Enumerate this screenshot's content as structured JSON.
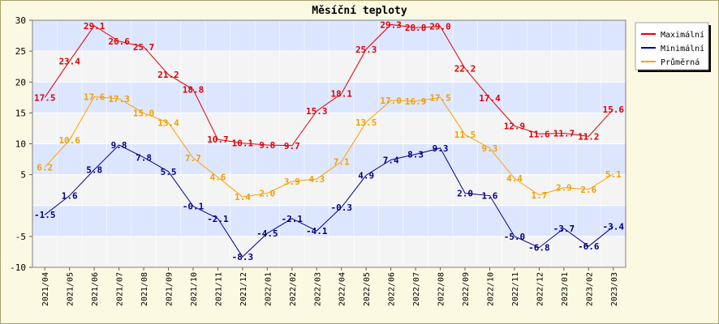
{
  "chart_data": {
    "type": "line",
    "title": "Měsíční teploty",
    "xlabel": "",
    "ylabel": "",
    "ylim": [
      -10,
      30
    ],
    "yticks": [
      -10,
      -5,
      5,
      10,
      15,
      20,
      25,
      30
    ],
    "categories": [
      "2021/04",
      "2021/05",
      "2021/06",
      "2021/07",
      "2021/08",
      "2021/09",
      "2021/10",
      "2021/11",
      "2021/12",
      "2022/01",
      "2022/02",
      "2022/03",
      "2022/04",
      "2022/05",
      "2022/06",
      "2022/07",
      "2022/08",
      "2022/09",
      "2022/10",
      "2022/11",
      "2022/12",
      "2023/01",
      "2023/02",
      "2023/03"
    ],
    "grid": true,
    "legend_position": "top-right",
    "series": [
      {
        "name": "Maximální",
        "color": "#e00000",
        "label_color": "#e00000",
        "values": [
          17.5,
          23.4,
          29.1,
          26.6,
          25.7,
          21.2,
          18.8,
          10.7,
          10.1,
          9.8,
          9.7,
          15.3,
          18.1,
          25.3,
          29.3,
          28.8,
          29.0,
          22.2,
          17.4,
          12.9,
          11.6,
          11.7,
          11.2,
          15.6
        ]
      },
      {
        "name": "Minimální",
        "color": "#000090",
        "label_color": "#000080",
        "values": [
          -1.5,
          1.6,
          5.8,
          9.8,
          7.8,
          5.5,
          -0.1,
          -2.1,
          -8.3,
          -4.5,
          -2.1,
          -4.1,
          -0.3,
          4.9,
          7.4,
          8.3,
          9.3,
          2.0,
          1.6,
          -5.0,
          -6.8,
          -3.7,
          -6.6,
          -3.4
        ]
      },
      {
        "name": "Průměrná",
        "color": "#ffa000",
        "label_color": "#f0a000",
        "values": [
          6.2,
          10.6,
          17.6,
          17.3,
          15.0,
          13.4,
          7.7,
          4.6,
          1.4,
          2.0,
          3.9,
          4.3,
          7.1,
          13.5,
          17.0,
          16.9,
          17.5,
          11.5,
          9.3,
          4.4,
          1.7,
          2.9,
          2.6,
          5.1
        ]
      }
    ]
  }
}
